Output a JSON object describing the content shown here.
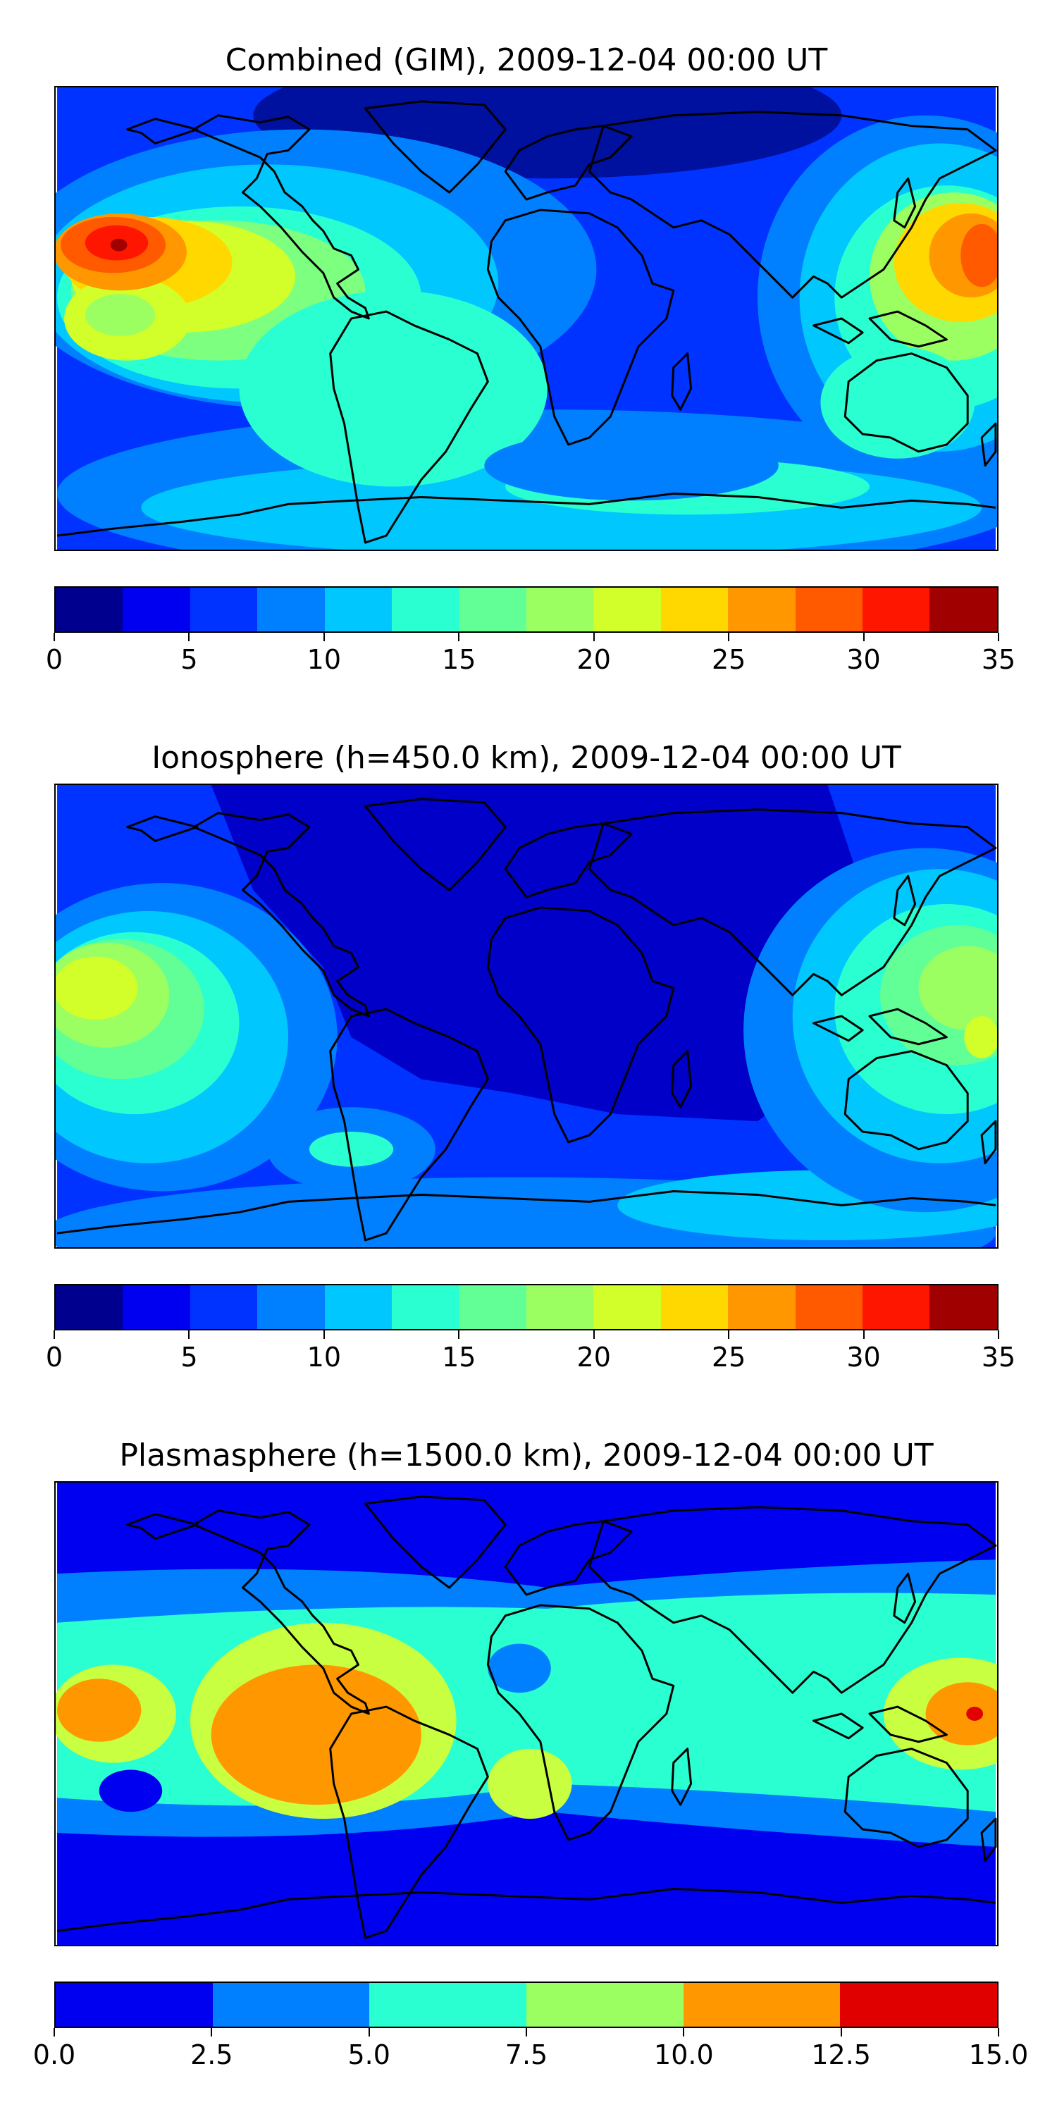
{
  "charts": [
    {
      "title": "Combined (GIM), 2009-12-04 00:00 UT",
      "colorbar": {
        "ticks": [
          "0",
          "5",
          "10",
          "15",
          "20",
          "25",
          "30",
          "35"
        ],
        "range": [
          0,
          35
        ],
        "levels": [
          "#00008f",
          "#0000f0",
          "#0033ff",
          "#0080ff",
          "#00c8ff",
          "#29ffd0",
          "#62ff97",
          "#9bff62",
          "#d2ff29",
          "#ffd800",
          "#ff9800",
          "#ff5a00",
          "#ff1600",
          "#a00000"
        ]
      },
      "map_colors": {
        "bg": "#0038ff",
        "low": "#00109f",
        "mid": "#00c8ff",
        "teal": "#29ffd0",
        "green": "#7dff80",
        "yellow": "#ffd800",
        "orange": "#ff9800",
        "red": "#ff1600",
        "dark": "#a00000"
      }
    },
    {
      "title": "Ionosphere  (h=450.0 km), 2009-12-04 00:00 UT",
      "colorbar": {
        "ticks": [
          "0",
          "5",
          "10",
          "15",
          "20",
          "25",
          "30",
          "35"
        ],
        "range": [
          0,
          35
        ],
        "levels": [
          "#00008f",
          "#0000f0",
          "#0033ff",
          "#0080ff",
          "#00c8ff",
          "#29ffd0",
          "#62ff97",
          "#9bff62",
          "#d2ff29",
          "#ffd800",
          "#ff9800",
          "#ff5a00",
          "#ff1600",
          "#a00000"
        ]
      },
      "map_colors": {
        "bg": "#0033ff",
        "low": "#0000c8",
        "mid": "#00c8ff",
        "teal": "#29ffd0",
        "green": "#9bff62",
        "yellow": "#d2ff29"
      }
    },
    {
      "title": "Plasmasphere (h=1500.0 km), 2009-12-04 00:00 UT",
      "colorbar": {
        "ticks": [
          "0.0",
          "2.5",
          "5.0",
          "7.5",
          "10.0",
          "12.5",
          "15.0"
        ],
        "range": [
          0,
          15
        ],
        "levels": [
          "#0000f0",
          "#0080ff",
          "#29ffd0",
          "#9bff62",
          "#ff9800",
          "#e00000"
        ]
      },
      "map_colors": {
        "bg": "#0000f0",
        "light": "#0080ff",
        "teal": "#29ffd0",
        "yellow": "#c8ff40",
        "orange": "#ff9800",
        "red": "#e00000"
      }
    }
  ],
  "chart_data": [
    {
      "type": "heatmap",
      "title": "Combined (GIM), 2009-12-04 00:00 UT",
      "colorbar_range": [
        0,
        35
      ],
      "colorbar_ticks": [
        0,
        5,
        10,
        15,
        20,
        25,
        30,
        35
      ]
    },
    {
      "type": "heatmap",
      "title": "Ionosphere  (h=450.0 km), 2009-12-04 00:00 UT",
      "colorbar_range": [
        0,
        35
      ],
      "colorbar_ticks": [
        0,
        5,
        10,
        15,
        20,
        25,
        30,
        35
      ]
    },
    {
      "type": "heatmap",
      "title": "Plasmasphere (h=1500.0 km), 2009-12-04 00:00 UT",
      "colorbar_range": [
        0,
        15
      ],
      "colorbar_ticks": [
        0.0,
        2.5,
        5.0,
        7.5,
        10.0,
        12.5,
        15.0
      ]
    }
  ]
}
